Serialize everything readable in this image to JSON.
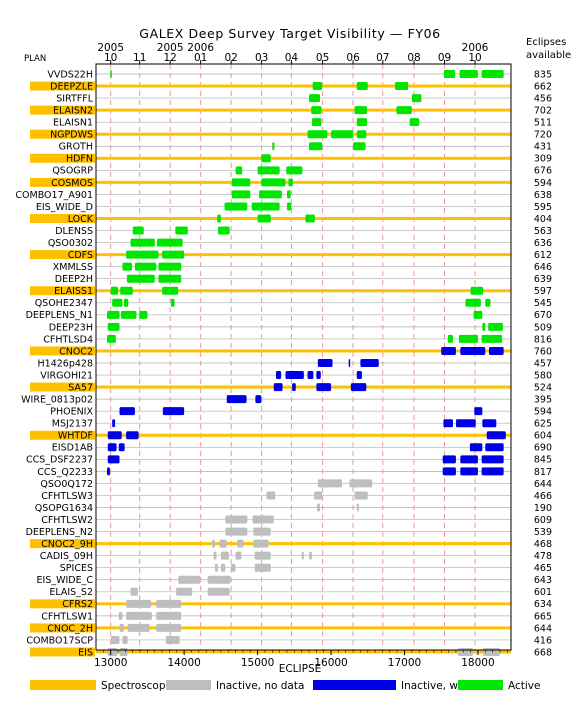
{
  "chart_data": {
    "type": "bar",
    "title": "GALEX Deep Survey Target Visibility — FY06",
    "xlabel": "ECLIPSE",
    "plan_header": "PLAN",
    "right_header": [
      "Eclipses",
      "available"
    ],
    "xlim": [
      12800,
      18450
    ],
    "x_ticks": [
      {
        "label": "13000",
        "value": 13000
      },
      {
        "label": "14000",
        "value": 14000
      },
      {
        "label": "15000",
        "value": 15000
      },
      {
        "label": "16000",
        "value": 16000
      },
      {
        "label": "17000",
        "value": 17000
      },
      {
        "label": "18000",
        "value": 18000
      }
    ],
    "month_ticks": [
      {
        "label": "10",
        "value": 13000,
        "year": "2005"
      },
      {
        "label": "11",
        "value": 13395
      },
      {
        "label": "12",
        "value": 13810,
        "year": "2005"
      },
      {
        "label": "01",
        "value": 14225,
        "year": "2006"
      },
      {
        "label": "02",
        "value": 14640
      },
      {
        "label": "03",
        "value": 15055
      },
      {
        "label": "04",
        "value": 15460
      },
      {
        "label": "05",
        "value": 15885
      },
      {
        "label": "06",
        "value": 16300
      },
      {
        "label": "07",
        "value": 16705
      },
      {
        "label": "08",
        "value": 17130
      },
      {
        "label": "09",
        "value": 17545
      },
      {
        "label": "10",
        "value": 17960,
        "year": "2006"
      }
    ],
    "legend": [
      {
        "key": "spectroscopic",
        "label": "Spectroscopic",
        "color": "#FFC000"
      },
      {
        "key": "inactive_nodata",
        "label": "Inactive, no data",
        "color": "#BEBEBE"
      },
      {
        "key": "inactive_data",
        "label": "Inactive, with data",
        "color": "#0000E6"
      },
      {
        "key": "active",
        "label": "Active",
        "color": "#00E600"
      }
    ],
    "targets": [
      {
        "name": "VVDS22H",
        "spectroscopic": false,
        "eclipses": "835",
        "status": "active",
        "segments": [
          [
            12995,
            13005
          ],
          [
            17535,
            17690
          ],
          [
            17750,
            18000
          ],
          [
            18050,
            18350
          ]
        ]
      },
      {
        "name": "DEEPZLE",
        "spectroscopic": true,
        "eclipses": "662",
        "status": "active",
        "segments": [
          [
            15750,
            15880
          ],
          [
            16350,
            16500
          ],
          [
            16870,
            17050
          ]
        ]
      },
      {
        "name": "SIRTFFL",
        "spectroscopic": false,
        "eclipses": "456",
        "status": "active",
        "segments": [
          [
            15700,
            15850
          ],
          [
            17100,
            17230
          ]
        ]
      },
      {
        "name": "ELAISN2",
        "spectroscopic": true,
        "eclipses": "702",
        "status": "active",
        "segments": [
          [
            15730,
            15870
          ],
          [
            16320,
            16490
          ],
          [
            16890,
            17100
          ]
        ]
      },
      {
        "name": "ELAISN1",
        "spectroscopic": false,
        "eclipses": "511",
        "status": "active",
        "segments": [
          [
            15740,
            15870
          ],
          [
            16350,
            16490
          ],
          [
            17070,
            17200
          ]
        ]
      },
      {
        "name": "NGPDWS",
        "spectroscopic": true,
        "eclipses": "720",
        "status": "active",
        "segments": [
          [
            15680,
            15950
          ],
          [
            16000,
            16300
          ],
          [
            16350,
            16480
          ]
        ]
      },
      {
        "name": "GROTH",
        "spectroscopic": false,
        "eclipses": "431",
        "status": "active",
        "segments": [
          [
            15200,
            15230
          ],
          [
            15700,
            15880
          ],
          [
            16300,
            16470
          ]
        ]
      },
      {
        "name": "HDFN",
        "spectroscopic": true,
        "eclipses": "309",
        "status": "active",
        "segments": [
          [
            15050,
            15180
          ]
        ]
      },
      {
        "name": "QSOGRP",
        "spectroscopic": false,
        "eclipses": "676",
        "status": "active",
        "segments": [
          [
            14700,
            14790
          ],
          [
            15000,
            15300
          ],
          [
            15390,
            15610
          ]
        ]
      },
      {
        "name": "COSMOS",
        "spectroscopic": true,
        "eclipses": "594",
        "status": "active",
        "segments": [
          [
            14650,
            14900
          ],
          [
            15050,
            15380
          ],
          [
            15420,
            15480
          ]
        ]
      },
      {
        "name": "COMBO17_A901",
        "spectroscopic": false,
        "eclipses": "638",
        "status": "active",
        "segments": [
          [
            14650,
            14900
          ],
          [
            15020,
            15330
          ],
          [
            15400,
            15450
          ]
        ]
      },
      {
        "name": "EIS_WIDE_D",
        "spectroscopic": false,
        "eclipses": "595",
        "status": "active",
        "segments": [
          [
            14550,
            14860
          ],
          [
            14920,
            15300
          ],
          [
            15400,
            15460
          ]
        ]
      },
      {
        "name": "LOCK",
        "spectroscopic": true,
        "eclipses": "404",
        "status": "active",
        "segments": [
          [
            14450,
            14500
          ],
          [
            15000,
            15180
          ],
          [
            15650,
            15780
          ]
        ]
      },
      {
        "name": "DLENSS",
        "spectroscopic": false,
        "eclipses": "563",
        "status": "active",
        "segments": [
          [
            13300,
            13450
          ],
          [
            13880,
            14050
          ],
          [
            14460,
            14620
          ]
        ]
      },
      {
        "name": "QSO0302",
        "spectroscopic": false,
        "eclipses": "636",
        "status": "active",
        "segments": [
          [
            13270,
            13600
          ],
          [
            13630,
            13980
          ]
        ]
      },
      {
        "name": "CDFS",
        "spectroscopic": true,
        "eclipses": "612",
        "status": "active",
        "segments": [
          [
            13210,
            13650
          ],
          [
            13700,
            14000
          ]
        ]
      },
      {
        "name": "XMMLSS",
        "spectroscopic": false,
        "eclipses": "646",
        "status": "active",
        "segments": [
          [
            13160,
            13290
          ],
          [
            13330,
            13620
          ],
          [
            13650,
            13960
          ]
        ]
      },
      {
        "name": "DEEP2H",
        "spectroscopic": false,
        "eclipses": "639",
        "status": "active",
        "segments": [
          [
            13220,
            13600
          ],
          [
            13650,
            13960
          ]
        ]
      },
      {
        "name": "ELAISS1",
        "spectroscopic": true,
        "eclipses": "597",
        "status": "active",
        "segments": [
          [
            13000,
            13100
          ],
          [
            13130,
            13300
          ],
          [
            13700,
            13920
          ],
          [
            17900,
            18070
          ]
        ]
      },
      {
        "name": "QSOHE2347",
        "spectroscopic": false,
        "eclipses": "545",
        "status": "active",
        "segments": [
          [
            13020,
            13160
          ],
          [
            13180,
            13240
          ],
          [
            13820,
            13870
          ],
          [
            17830,
            18040
          ],
          [
            18100,
            18170
          ]
        ]
      },
      {
        "name": "DEEPLENS_N1",
        "spectroscopic": false,
        "eclipses": "670",
        "status": "active",
        "segments": [
          [
            12950,
            13120
          ],
          [
            13140,
            13350
          ],
          [
            13390,
            13500
          ],
          [
            17940,
            18060
          ]
        ]
      },
      {
        "name": "DEEP23H",
        "spectroscopic": false,
        "eclipses": "509",
        "status": "active",
        "segments": [
          [
            12960,
            13120
          ],
          [
            18060,
            18100
          ],
          [
            18140,
            18340
          ]
        ]
      },
      {
        "name": "CFHTLSD4",
        "spectroscopic": false,
        "eclipses": "816",
        "status": "active",
        "segments": [
          [
            12950,
            13070
          ],
          [
            17590,
            17660
          ],
          [
            17740,
            18000
          ],
          [
            18050,
            18330
          ]
        ]
      },
      {
        "name": "CNOC2",
        "spectroscopic": true,
        "eclipses": "760",
        "status": "inactive_data",
        "segments": [
          [
            17500,
            17700
          ],
          [
            17760,
            18100
          ],
          [
            18150,
            18350
          ]
        ]
      },
      {
        "name": "H1426p428",
        "spectroscopic": false,
        "eclipses": "457",
        "status": "inactive_data",
        "segments": [
          [
            15820,
            16020
          ],
          [
            16240,
            16260
          ],
          [
            16400,
            16650
          ]
        ]
      },
      {
        "name": "VIRGOHI21",
        "spectroscopic": false,
        "eclipses": "580",
        "status": "inactive_data",
        "segments": [
          [
            15250,
            15320
          ],
          [
            15380,
            15630
          ],
          [
            15680,
            15760
          ],
          [
            15800,
            15860
          ],
          [
            16350,
            16420
          ]
        ]
      },
      {
        "name": "SA57",
        "spectroscopic": true,
        "eclipses": "524",
        "status": "inactive_data",
        "segments": [
          [
            15220,
            15340
          ],
          [
            15470,
            15520
          ],
          [
            15800,
            16000
          ],
          [
            16270,
            16480
          ]
        ]
      },
      {
        "name": "WIRE_0813p02",
        "spectroscopic": false,
        "eclipses": "395",
        "status": "inactive_data",
        "segments": [
          [
            14580,
            14850
          ],
          [
            14970,
            15050
          ]
        ]
      },
      {
        "name": "PHOENIX",
        "spectroscopic": false,
        "eclipses": "594",
        "status": "inactive_data",
        "segments": [
          [
            13120,
            13330
          ],
          [
            13710,
            14000
          ],
          [
            17950,
            18060
          ]
        ]
      },
      {
        "name": "MSJ2137",
        "spectroscopic": false,
        "eclipses": "625",
        "status": "inactive_data",
        "segments": [
          [
            13020,
            13060
          ],
          [
            17530,
            17660
          ],
          [
            17700,
            17970
          ],
          [
            18060,
            18250
          ]
        ]
      },
      {
        "name": "WHTDF",
        "spectroscopic": true,
        "eclipses": "604",
        "status": "inactive_data",
        "segments": [
          [
            12960,
            13150
          ],
          [
            13210,
            13380
          ],
          [
            18120,
            18380
          ]
        ]
      },
      {
        "name": "EISD1AB",
        "spectroscopic": false,
        "eclipses": "690",
        "status": "inactive_data",
        "segments": [
          [
            12960,
            13080
          ],
          [
            13110,
            13190
          ],
          [
            17890,
            18060
          ],
          [
            18100,
            18350
          ]
        ]
      },
      {
        "name": "CCS_DSF2237",
        "spectroscopic": false,
        "eclipses": "845",
        "status": "inactive_data",
        "segments": [
          [
            12960,
            13120
          ],
          [
            17520,
            17700
          ],
          [
            17760,
            18000
          ],
          [
            18050,
            18350
          ]
        ]
      },
      {
        "name": "CCS_Q2233",
        "spectroscopic": false,
        "eclipses": "817",
        "status": "inactive_data",
        "segments": [
          [
            12950,
            12990
          ],
          [
            17520,
            17700
          ],
          [
            17760,
            18000
          ],
          [
            18050,
            18350
          ]
        ]
      },
      {
        "name": "QSO0Q172",
        "spectroscopic": false,
        "eclipses": "644",
        "status": "inactive_nodata",
        "segments": [
          [
            15820,
            16150
          ],
          [
            16250,
            16560
          ]
        ]
      },
      {
        "name": "CFHTLSW3",
        "spectroscopic": false,
        "eclipses": "466",
        "status": "inactive_nodata",
        "segments": [
          [
            15120,
            15240
          ],
          [
            15770,
            15880
          ],
          [
            16320,
            16500
          ]
        ]
      },
      {
        "name": "QSOPG1634",
        "spectroscopic": false,
        "eclipses": "190",
        "status": "inactive_nodata",
        "segments": [
          [
            15810,
            15850
          ],
          [
            16350,
            16380
          ]
        ]
      },
      {
        "name": "CFHTLSW2",
        "spectroscopic": false,
        "eclipses": "609",
        "status": "inactive_nodata",
        "segments": [
          [
            14560,
            14860
          ],
          [
            14930,
            15220
          ]
        ]
      },
      {
        "name": "DEEPLENS_N2",
        "spectroscopic": false,
        "eclipses": "539",
        "status": "inactive_nodata",
        "segments": [
          [
            14560,
            14860
          ],
          [
            14940,
            15180
          ]
        ]
      },
      {
        "name": "CNOC2_9H",
        "spectroscopic": true,
        "eclipses": "468",
        "status": "inactive_nodata",
        "segments": [
          [
            14380,
            14420
          ],
          [
            14480,
            14580
          ],
          [
            14720,
            14810
          ],
          [
            14940,
            15150
          ]
        ]
      },
      {
        "name": "CADIS_09H",
        "spectroscopic": false,
        "eclipses": "478",
        "status": "inactive_nodata",
        "segments": [
          [
            14400,
            14440
          ],
          [
            14500,
            14610
          ],
          [
            14700,
            14780
          ],
          [
            14960,
            15180
          ],
          [
            15600,
            15630
          ],
          [
            15700,
            15740
          ]
        ]
      },
      {
        "name": "SPICES",
        "spectroscopic": false,
        "eclipses": "465",
        "status": "inactive_nodata",
        "segments": [
          [
            14420,
            14460
          ],
          [
            14500,
            14560
          ],
          [
            14640,
            14700
          ],
          [
            14960,
            15180
          ]
        ]
      },
      {
        "name": "EIS_WIDE_C",
        "spectroscopic": false,
        "eclipses": "643",
        "status": "inactive_nodata",
        "segments": [
          [
            13920,
            14220
          ],
          [
            14320,
            14630
          ]
        ]
      },
      {
        "name": "ELAIS_S2",
        "spectroscopic": false,
        "eclipses": "601",
        "status": "inactive_nodata",
        "segments": [
          [
            13270,
            13370
          ],
          [
            13890,
            14110
          ],
          [
            14320,
            14620
          ]
        ]
      },
      {
        "name": "CFRS2",
        "spectroscopic": true,
        "eclipses": "634",
        "status": "inactive_nodata",
        "segments": [
          [
            13210,
            13550
          ],
          [
            13620,
            13960
          ]
        ]
      },
      {
        "name": "CFHTLSW1",
        "spectroscopic": false,
        "eclipses": "665",
        "status": "inactive_nodata",
        "segments": [
          [
            13110,
            13160
          ],
          [
            13210,
            13560
          ],
          [
            13620,
            13960
          ]
        ]
      },
      {
        "name": "CNOC_2H",
        "spectroscopic": true,
        "eclipses": "644",
        "status": "inactive_nodata",
        "segments": [
          [
            13120,
            13180
          ],
          [
            13230,
            13530
          ],
          [
            13620,
            13960
          ]
        ]
      },
      {
        "name": "COMBO17SCP",
        "spectroscopic": false,
        "eclipses": "416",
        "status": "inactive_nodata",
        "segments": [
          [
            13000,
            13120
          ],
          [
            13160,
            13230
          ],
          [
            13750,
            13940
          ]
        ]
      },
      {
        "name": "EIS",
        "spectroscopic": true,
        "eclipses": "668",
        "status": "inactive_nodata",
        "segments": [
          [
            12960,
            13090
          ],
          [
            13120,
            13230
          ],
          [
            17730,
            17930
          ],
          [
            18070,
            18300
          ]
        ]
      }
    ]
  }
}
